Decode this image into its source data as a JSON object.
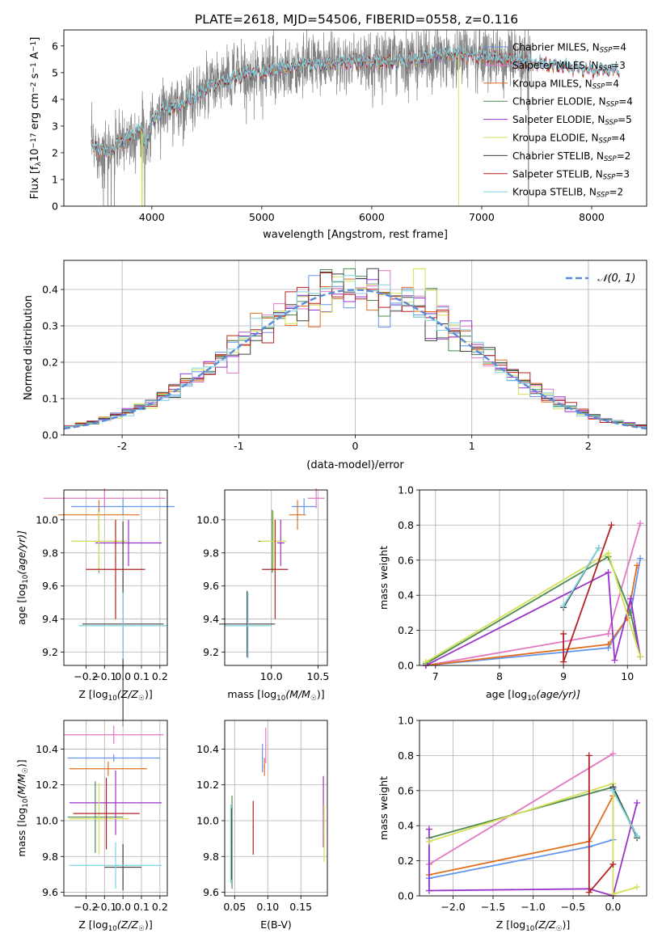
{
  "figure_title": "PLATE=2618, MJD=54506, FIBERID=0558, z=0.116",
  "colors": {
    "observed": "#808080",
    "Chabrier MILES": "#6495ed",
    "Salpeter MILES": "#e377c2",
    "Kroupa MILES": "#e07020",
    "Chabrier ELODIE": "#4e8a4e",
    "Salpeter ELODIE": "#9932cc",
    "Kroupa ELODIE": "#d4e157",
    "Chabrier STELIB": "#404040",
    "Salpeter STELIB": "#b22222",
    "Kroupa STELIB": "#7fd3e0",
    "normal": "#5b8bd8"
  },
  "chart_data": [
    {
      "id": "spectrum",
      "type": "line",
      "xlabel": "wavelength [Angstrom, rest frame]",
      "ylabel_parts": [
        "Flux [f",
        "λ",
        "10",
        "−17",
        " erg cm",
        "−2",
        " s",
        "−1",
        " A",
        "−1",
        "]"
      ],
      "xlim": [
        3200,
        8500
      ],
      "ylim": [
        0,
        6.6
      ],
      "xticks": [
        4000,
        5000,
        6000,
        7000,
        8000
      ],
      "yticks": [
        0,
        1,
        2,
        3,
        4,
        5,
        6
      ],
      "continuum": [
        [
          3450,
          2.2
        ],
        [
          3500,
          2.2
        ],
        [
          3600,
          2.0
        ],
        [
          3700,
          2.3
        ],
        [
          3800,
          2.6
        ],
        [
          3900,
          2.9
        ],
        [
          3950,
          2.3
        ],
        [
          4000,
          3.2
        ],
        [
          4100,
          3.6
        ],
        [
          4200,
          3.7
        ],
        [
          4300,
          3.9
        ],
        [
          4400,
          4.1
        ],
        [
          4500,
          4.4
        ],
        [
          4600,
          4.6
        ],
        [
          4700,
          4.7
        ],
        [
          4800,
          4.9
        ],
        [
          4900,
          5.0
        ],
        [
          5000,
          5.0
        ],
        [
          5200,
          5.2
        ],
        [
          5400,
          5.3
        ],
        [
          5600,
          5.3
        ],
        [
          5800,
          5.4
        ],
        [
          6000,
          5.4
        ],
        [
          6200,
          5.4
        ],
        [
          6400,
          5.5
        ],
        [
          6600,
          5.7
        ],
        [
          6800,
          5.7
        ],
        [
          7000,
          5.6
        ],
        [
          7200,
          5.5
        ],
        [
          7400,
          5.4
        ],
        [
          7600,
          5.3
        ],
        [
          7800,
          5.2
        ],
        [
          8000,
          5.1
        ],
        [
          8200,
          5.1
        ],
        [
          8250,
          5.1
        ]
      ],
      "observed_range": [
        3450,
        7450
      ],
      "model_range": [
        3450,
        8250
      ],
      "legend": [
        {
          "model": "Chabrier MILES",
          "label": "Chabrier MILES, N",
          "nssp": "4"
        },
        {
          "model": "Salpeter MILES",
          "label": "Salpeter MILES, N",
          "nssp": "3"
        },
        {
          "model": "Kroupa MILES",
          "label": "Kroupa MILES, N",
          "nssp": "4"
        },
        {
          "model": "Chabrier ELODIE",
          "label": "Chabrier ELODIE, N",
          "nssp": "4"
        },
        {
          "model": "Salpeter ELODIE",
          "label": "Salpeter ELODIE, N",
          "nssp": "5"
        },
        {
          "model": "Kroupa ELODIE",
          "label": "Kroupa ELODIE, N",
          "nssp": "4"
        },
        {
          "model": "Chabrier STELIB",
          "label": "Chabrier STELIB, N",
          "nssp": "2"
        },
        {
          "model": "Salpeter STELIB",
          "label": "Salpeter STELIB, N",
          "nssp": "3"
        },
        {
          "model": "Kroupa STELIB",
          "label": "Kroupa STELIB, N",
          "nssp": "2"
        }
      ],
      "nssp_sub": "SSP"
    },
    {
      "id": "residual_hist",
      "type": "bar",
      "xlabel": "(data-model)/error",
      "ylabel": "Normed distribution",
      "xlim": [
        -2.5,
        2.5
      ],
      "ylim": [
        0,
        0.48
      ],
      "xticks": [
        -2,
        -1,
        0,
        1,
        2
      ],
      "yticks": [
        0,
        0.1,
        0.2,
        0.3,
        0.4
      ],
      "bin_width": 0.1,
      "legend_label": "𝒩(0, 1)",
      "grid": true
    },
    {
      "id": "age_vs_Z",
      "type": "scatter",
      "xlabel_parts": [
        "Z [log",
        "10",
        "(Z/Z",
        "☉",
        ")]"
      ],
      "ylabel_parts": [
        "age  [log",
        "10",
        "(age/yr)]"
      ],
      "xlim": [
        -0.32,
        0.24
      ],
      "ylim": [
        9.12,
        10.18
      ],
      "xticks": [
        -0.2,
        -0.1,
        0.0,
        0.1,
        0.2
      ],
      "xtick_labels": [
        "−0.2",
        "−0.1",
        "0.0",
        "0.1",
        "0.2"
      ],
      "yticks": [
        9.2,
        9.4,
        9.6,
        9.8,
        10.0
      ],
      "grid": true,
      "points": [
        {
          "model": "Chabrier MILES",
          "x": 0.0,
          "xerr": 0.28,
          "y": 10.08,
          "yerr": 0.05
        },
        {
          "model": "Salpeter MILES",
          "x": -0.1,
          "xerr": 0.33,
          "y": 10.13,
          "yerr": 0.06
        },
        {
          "model": "Kroupa MILES",
          "x": -0.13,
          "xerr": 0.22,
          "y": 10.03,
          "yerr": 0.09
        },
        {
          "model": "Chabrier ELODIE",
          "x": -0.13,
          "xerr": 0.15,
          "y": 9.87,
          "yerr": 0.19
        },
        {
          "model": "Salpeter ELODIE",
          "x": 0.03,
          "xerr": 0.18,
          "y": 9.86,
          "yerr": 0.14
        },
        {
          "model": "Kroupa ELODIE",
          "x": -0.13,
          "xerr": 0.15,
          "y": 9.87,
          "yerr": 0.18
        },
        {
          "model": "Chabrier STELIB",
          "x": 0.0,
          "xerr": 0.22,
          "y": 9.37,
          "yerr": 0.62
        },
        {
          "model": "Salpeter STELIB",
          "x": -0.04,
          "xerr": 0.16,
          "y": 9.7,
          "yerr": 0.3
        },
        {
          "model": "Kroupa STELIB",
          "x": 0.0,
          "xerr": 0.24,
          "y": 9.36,
          "yerr": 0.2
        }
      ]
    },
    {
      "id": "age_vs_mass",
      "type": "scatter",
      "xlabel_parts": [
        "mass [log",
        "10",
        "(M/M",
        "☉",
        ")]"
      ],
      "xlim": [
        9.5,
        10.6
      ],
      "ylim": [
        9.12,
        10.18
      ],
      "xticks": [
        10.0,
        10.5
      ],
      "xtick_labels": [
        "10.0",
        "10.5"
      ],
      "yticks": [
        9.2,
        9.4,
        9.6,
        9.8,
        10.0
      ],
      "grid": true,
      "points": [
        {
          "model": "Chabrier MILES",
          "x": 10.35,
          "xerr": 0.13,
          "y": 10.08,
          "yerr": 0.05
        },
        {
          "model": "Salpeter MILES",
          "x": 10.48,
          "xerr": 0.09,
          "y": 10.13,
          "yerr": 0.06
        },
        {
          "model": "Kroupa MILES",
          "x": 10.28,
          "xerr": 0.09,
          "y": 10.03,
          "yerr": 0.09
        },
        {
          "model": "Chabrier ELODIE",
          "x": 10.01,
          "xerr": 0.15,
          "y": 9.87,
          "yerr": 0.19
        },
        {
          "model": "Salpeter ELODIE",
          "x": 10.1,
          "xerr": 0.04,
          "y": 9.86,
          "yerr": 0.14
        },
        {
          "model": "Kroupa ELODIE",
          "x": 10.02,
          "xerr": 0.14,
          "y": 9.87,
          "yerr": 0.18
        },
        {
          "model": "Chabrier STELIB",
          "x": 9.74,
          "xerr": 0.3,
          "y": 9.37,
          "yerr": 0.2
        },
        {
          "model": "Salpeter STELIB",
          "x": 10.04,
          "xerr": 0.14,
          "y": 9.7,
          "yerr": 0.3
        },
        {
          "model": "Kroupa STELIB",
          "x": 9.75,
          "xerr": 0.25,
          "y": 9.36,
          "yerr": 0.2
        }
      ]
    },
    {
      "id": "weight_vs_age",
      "type": "line",
      "xlabel_parts": [
        "age  [log",
        "10",
        "(age/yr)]"
      ],
      "ylabel": "mass weight",
      "xlim": [
        6.75,
        10.3
      ],
      "ylim": [
        0,
        1.0
      ],
      "xticks": [
        7,
        8,
        9,
        10
      ],
      "yticks": [
        0.0,
        0.2,
        0.4,
        0.6,
        0.8,
        1.0
      ],
      "xtick_labels": [
        "7",
        "8",
        "9",
        "10"
      ],
      "ytick_labels": [
        "0.0",
        "0.2",
        "0.4",
        "0.6",
        "0.8",
        "1.0"
      ],
      "grid": true,
      "series": [
        {
          "model": "Chabrier MILES",
          "x": [
            6.85,
            9.7,
            10.05,
            10.2
          ],
          "y": [
            0.0,
            0.1,
            0.3,
            0.61
          ]
        },
        {
          "model": "Salpeter MILES",
          "x": [
            6.85,
            9.7,
            10.2
          ],
          "y": [
            0.0,
            0.18,
            0.81
          ]
        },
        {
          "model": "Kroupa MILES",
          "x": [
            6.85,
            9.7,
            10.0,
            10.15
          ],
          "y": [
            0.0,
            0.12,
            0.27,
            0.57
          ]
        },
        {
          "model": "Chabrier ELODIE",
          "x": [
            6.85,
            9.7,
            10.05,
            10.2
          ],
          "y": [
            0.01,
            0.62,
            0.3,
            0.05
          ]
        },
        {
          "model": "Salpeter ELODIE",
          "x": [
            6.85,
            9.7,
            9.8,
            10.05,
            10.2
          ],
          "y": [
            0.0,
            0.53,
            0.03,
            0.38,
            0.05
          ]
        },
        {
          "model": "Kroupa ELODIE",
          "x": [
            6.85,
            9.7,
            10.2
          ],
          "y": [
            0.02,
            0.64,
            0.05
          ]
        },
        {
          "model": "Chabrier STELIB",
          "x": [
            9.0,
            9.55
          ],
          "y": [
            0.33,
            0.67
          ]
        },
        {
          "model": "Salpeter STELIB",
          "x": [
            9.0,
            9.0,
            9.75
          ],
          "y": [
            0.18,
            0.02,
            0.8
          ]
        },
        {
          "model": "Kroupa STELIB",
          "x": [
            9.0,
            9.55
          ],
          "y": [
            0.34,
            0.67
          ]
        }
      ]
    },
    {
      "id": "mass_vs_Z",
      "type": "scatter",
      "xlabel_parts": [
        "Z [log",
        "10",
        "(Z/Z",
        "☉",
        ")]"
      ],
      "ylabel_parts": [
        "mass [log",
        "10",
        "(M/M",
        "☉",
        ")]"
      ],
      "xlim": [
        -0.32,
        0.24
      ],
      "ylim": [
        9.58,
        10.56
      ],
      "xticks": [
        -0.2,
        -0.1,
        0.0,
        0.1,
        0.2
      ],
      "xtick_labels": [
        "−0.2",
        "−0.1",
        "0.0",
        "0.1",
        "0.2"
      ],
      "yticks": [
        9.6,
        9.8,
        10.0,
        10.2,
        10.4
      ],
      "grid": true,
      "points": [
        {
          "model": "Chabrier MILES",
          "x": -0.05,
          "xerr": 0.25,
          "y": 10.35,
          "yerr": 0.02
        },
        {
          "model": "Salpeter MILES",
          "x": -0.05,
          "xerr": 0.27,
          "y": 10.48,
          "yerr": 0.05
        },
        {
          "model": "Kroupa MILES",
          "x": -0.08,
          "xerr": 0.21,
          "y": 10.29,
          "yerr": 0.04
        },
        {
          "model": "Chabrier ELODIE",
          "x": -0.15,
          "xerr": 0.15,
          "y": 10.02,
          "yerr": 0.2
        },
        {
          "model": "Salpeter ELODIE",
          "x": -0.04,
          "xerr": 0.25,
          "y": 10.1,
          "yerr": 0.18
        },
        {
          "model": "Kroupa ELODIE",
          "x": -0.13,
          "xerr": 0.16,
          "y": 10.01,
          "yerr": 0.2
        },
        {
          "model": "Chabrier STELIB",
          "x": 0.0,
          "xerr": 0.1,
          "y": 9.74,
          "yerr": 0.13
        },
        {
          "model": "Salpeter STELIB",
          "x": -0.09,
          "xerr": 0.18,
          "y": 10.04,
          "yerr": 0.2
        },
        {
          "model": "Kroupa STELIB",
          "x": -0.04,
          "xerr": 0.25,
          "y": 9.75,
          "yerr": 0.13
        }
      ]
    },
    {
      "id": "mass_vs_ebv",
      "type": "scatter",
      "xlabel": "E(B-V)",
      "xlim": [
        0.035,
        0.19
      ],
      "ylim": [
        9.58,
        10.56
      ],
      "xticks": [
        0.05,
        0.1,
        0.15
      ],
      "xtick_labels": [
        "0.05",
        "0.10",
        "0.15"
      ],
      "yticks": [
        9.6,
        9.8,
        10.0,
        10.2,
        10.4
      ],
      "grid": true,
      "points": [
        {
          "model": "Chabrier MILES",
          "x": 0.092,
          "y": 10.35,
          "yerr": 0.08
        },
        {
          "model": "Salpeter MILES",
          "x": 0.097,
          "y": 10.42,
          "yerr": 0.1
        },
        {
          "model": "Kroupa MILES",
          "x": 0.095,
          "y": 10.3,
          "yerr": 0.05
        },
        {
          "model": "Chabrier ELODIE",
          "x": 0.046,
          "y": 9.88,
          "yerr": 0.26
        },
        {
          "model": "Salpeter ELODIE",
          "x": 0.184,
          "y": 10.05,
          "yerr": 0.2
        },
        {
          "model": "Kroupa ELODIE",
          "x": 0.185,
          "y": 9.93,
          "yerr": 0.16
        },
        {
          "model": "Chabrier STELIB",
          "x": 0.045,
          "y": 9.87,
          "yerr": 0.2
        },
        {
          "model": "Salpeter STELIB",
          "x": 0.078,
          "y": 9.96,
          "yerr": 0.15
        },
        {
          "model": "Kroupa STELIB",
          "x": 0.044,
          "y": 9.87,
          "yerr": 0.22
        }
      ]
    },
    {
      "id": "weight_vs_Z",
      "type": "line",
      "xlabel_parts": [
        "Z [log",
        "10",
        "(Z/Z",
        "☉",
        ")]"
      ],
      "ylabel": "mass weight",
      "xlim": [
        -2.42,
        0.42
      ],
      "ylim": [
        0,
        1.0
      ],
      "xticks": [
        -2.0,
        -1.5,
        -1.0,
        -0.5,
        0.0
      ],
      "xtick_labels": [
        "−2.0",
        "−1.5",
        "−1.0",
        "−0.5",
        "0.0"
      ],
      "yticks": [
        0.0,
        0.2,
        0.4,
        0.6,
        0.8,
        1.0
      ],
      "ytick_labels": [
        "0.0",
        "0.2",
        "0.4",
        "0.6",
        "0.8",
        "1.0"
      ],
      "grid": true,
      "series": [
        {
          "model": "Chabrier MILES",
          "x": [
            -2.3,
            -0.3,
            -0.3,
            0.0,
            0.0
          ],
          "y": [
            0.1,
            0.28,
            0.28,
            0.32,
            0.61
          ]
        },
        {
          "model": "Salpeter MILES",
          "x": [
            -2.3,
            0.0
          ],
          "y": [
            0.18,
            0.81
          ]
        },
        {
          "model": "Kroupa MILES",
          "x": [
            -2.3,
            -0.3,
            0.0
          ],
          "y": [
            0.12,
            0.31,
            0.57
          ]
        },
        {
          "model": "Chabrier ELODIE",
          "x": [
            -2.3,
            0.0,
            0.3
          ],
          "y": [
            0.33,
            0.62,
            0.34
          ]
        },
        {
          "model": "Salpeter ELODIE",
          "x": [
            -2.3,
            -2.3,
            -0.3,
            0.0,
            0.3
          ],
          "y": [
            0.38,
            0.03,
            0.04,
            0.0,
            0.53
          ]
        },
        {
          "model": "Kroupa ELODIE",
          "x": [
            -2.3,
            0.0,
            0.0,
            0.3
          ],
          "y": [
            0.31,
            0.64,
            0.01,
            0.05
          ]
        },
        {
          "model": "Chabrier STELIB",
          "x": [
            0.0,
            0.3
          ],
          "y": [
            0.62,
            0.33
          ]
        },
        {
          "model": "Salpeter STELIB",
          "x": [
            -0.3,
            -0.3,
            0.0
          ],
          "y": [
            0.8,
            0.02,
            0.18
          ]
        },
        {
          "model": "Kroupa STELIB",
          "x": [
            0.0,
            0.3
          ],
          "y": [
            0.6,
            0.34
          ]
        }
      ]
    }
  ]
}
